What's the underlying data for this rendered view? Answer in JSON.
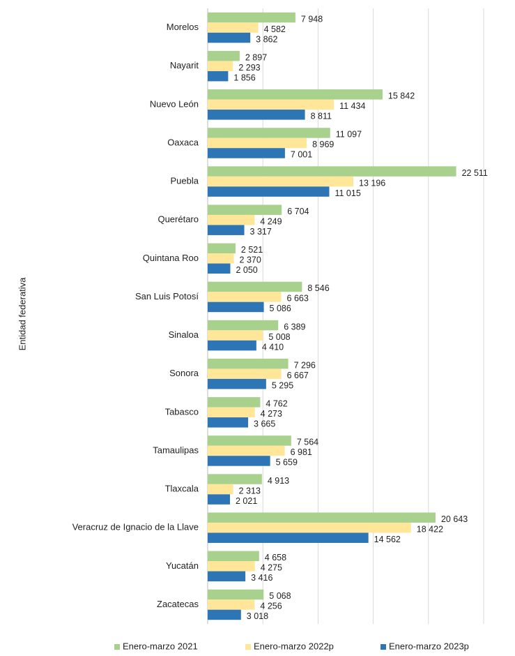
{
  "chart_data": {
    "type": "hbar",
    "y_label": "Entidad federativa",
    "categories": [
      "Morelos",
      "Nayarit",
      "Nuevo León",
      "Oaxaca",
      "Puebla",
      "Querétaro",
      "Quintana Roo",
      "San Luis Potosí",
      "Sinaloa",
      "Sonora",
      "Tabasco",
      "Tamaulipas",
      "Tlaxcala",
      "Veracruz de Ignacio de la Llave",
      "Yucatán",
      "Zacatecas"
    ],
    "series": [
      {
        "name": "Enero-marzo 2021",
        "color": "#a9d18e",
        "values": [
          7948,
          2897,
          15842,
          11097,
          22511,
          6704,
          2521,
          8546,
          6389,
          7296,
          4762,
          7564,
          4913,
          20643,
          4658,
          5068
        ],
        "value_labels": [
          "7 948",
          "2 897",
          "15 842",
          "11 097",
          "22 511",
          "6 704",
          "2 521",
          "8 546",
          "6 389",
          "7 296",
          "4 762",
          "7 564",
          "4 913",
          "20 643",
          "4 658",
          "5 068"
        ]
      },
      {
        "name": "Enero-marzo 2022p",
        "color": "#ffe699",
        "values": [
          4582,
          2293,
          11434,
          8969,
          13196,
          4249,
          2370,
          6663,
          5008,
          6667,
          4273,
          6981,
          2313,
          18422,
          4275,
          4256
        ],
        "value_labels": [
          "4 582",
          "2 293",
          "11 434",
          "8 969",
          "13 196",
          "4 249",
          "2 370",
          "6 663",
          "5 008",
          "6 667",
          "4 273",
          "6 981",
          "2 313",
          "18 422",
          "4 275",
          "4 256"
        ]
      },
      {
        "name": "Enero-marzo 2023p",
        "color": "#2e75b6",
        "values": [
          3862,
          1856,
          8811,
          7001,
          11015,
          3317,
          2050,
          5086,
          4410,
          5295,
          3665,
          5659,
          2021,
          14562,
          3416,
          3018
        ],
        "value_labels": [
          "3 862",
          "1 856",
          "8 811",
          "7 001",
          "11 015",
          "3 317",
          "2 050",
          "5 086",
          "4 410",
          "5 295",
          "3 665",
          "5 659",
          "2 021",
          "14 562",
          "3 416",
          "3 018"
        ]
      }
    ],
    "xlim": [
      0,
      25000
    ],
    "xticks": [
      0,
      5000,
      10000,
      15000,
      20000,
      25000
    ],
    "grid": true,
    "legend": "bottom"
  }
}
